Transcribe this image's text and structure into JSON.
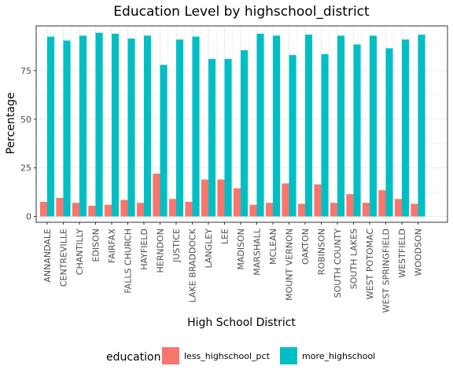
{
  "chart_data": {
    "type": "bar",
    "title": "Education Level by highschool_district",
    "xlabel": "High School District",
    "ylabel": "Percentage",
    "ylim": [
      -3,
      98
    ],
    "yticks": [
      0,
      25,
      50,
      75
    ],
    "grid": true,
    "legend_position": "bottom",
    "legend_title": "education",
    "categories": [
      "ANNANDALE",
      "CENTREVILLE",
      "CHANTILLY",
      "EDISON",
      "FAIRFAX",
      "FALLS CHURCH",
      "HAYFIELD",
      "HERNDON",
      "JUSTICE",
      "LAKE BRADDOCK",
      "LANGLEY",
      "LEE",
      "MADISON",
      "MARSHALL",
      "MCLEAN",
      "MOUNT VERNON",
      "OAKTON",
      "ROBINSON",
      "SOUTH COUNTY",
      "SOUTH LAKES",
      "WEST POTOMAC",
      "WEST SPRINGFIELD",
      "WESTFIELD",
      "WOODSON"
    ],
    "series": [
      {
        "name": "less_highschool_pct",
        "color": "#F8766D",
        "values": [
          7.5,
          9.5,
          7,
          5.5,
          6,
          8.5,
          7,
          22,
          9,
          7.5,
          19,
          19,
          14.5,
          6,
          7,
          17,
          6.5,
          16.5,
          7,
          11.5,
          7,
          13.5,
          9,
          6.5
        ]
      },
      {
        "name": "more_highschool",
        "color": "#00BFC4",
        "values": [
          92.5,
          90.5,
          93,
          94.5,
          94,
          91.5,
          93,
          78,
          91,
          92.5,
          81,
          81,
          85.5,
          94,
          93,
          83,
          93.5,
          83.5,
          93,
          88.5,
          93,
          86.5,
          91,
          93.5
        ]
      }
    ]
  }
}
